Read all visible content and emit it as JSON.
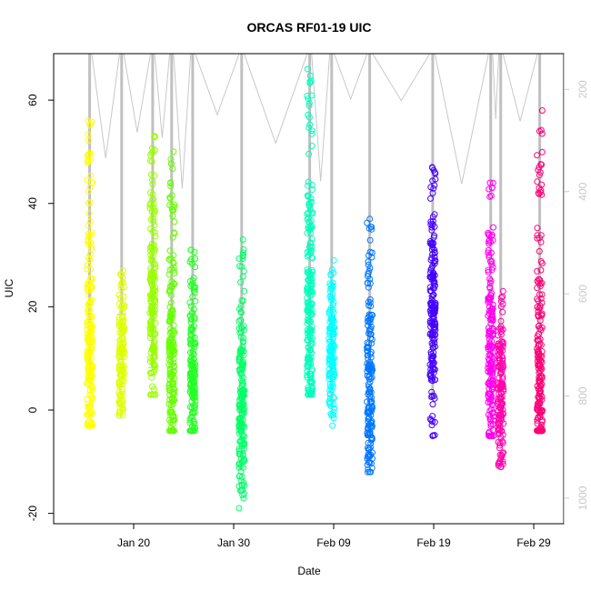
{
  "chart_data": {
    "type": "scatter",
    "title": "ORCAS RF01-19 UIC",
    "xlabel": "Date",
    "ylabel": "UIC",
    "xlim": [
      "2016-01-12",
      "2016-03-03"
    ],
    "ylim": [
      -22,
      69
    ],
    "y_ticks": [
      -20,
      0,
      20,
      40,
      60
    ],
    "x_ticks": [
      {
        "label": "Jan 20",
        "date": "2016-01-20"
      },
      {
        "label": "Jan 30",
        "date": "2016-01-30"
      },
      {
        "label": "Feb 09",
        "date": "2016-02-09"
      },
      {
        "label": "Feb 19",
        "date": "2016-02-19"
      },
      {
        "label": "Feb 29",
        "date": "2016-02-29"
      }
    ],
    "right_axis": {
      "ticks": [
        200,
        400,
        600,
        800,
        1000
      ],
      "reversed": true,
      "range_top": 130,
      "range_bottom": 1050,
      "color": "#c8c8c8"
    },
    "marker": "open-circle",
    "grid": false,
    "series": [
      {
        "date": "2016-01-15.6",
        "color": "#ffff00",
        "range": [
          -3,
          56
        ],
        "peak": 10
      },
      {
        "date": "2016-01-18.8",
        "color": "#ddff00",
        "range": [
          -1,
          27
        ],
        "peak": 10
      },
      {
        "date": "2016-01-21.9",
        "color": "#99ff00",
        "range": [
          3,
          53
        ],
        "peak": 20
      },
      {
        "date": "2016-01-23.8",
        "color": "#66ff00",
        "range": [
          -4,
          50
        ],
        "peak": 8
      },
      {
        "date": "2016-01-25.9",
        "color": "#22ff22",
        "range": [
          -4,
          31
        ],
        "peak": 8
      },
      {
        "date": "2016-01-30.8",
        "color": "#00ff66",
        "range": [
          -19,
          33
        ],
        "peak": 0
      },
      {
        "date": "2016-02-06.6",
        "color": "#00ffbb",
        "range": [
          3,
          66
        ],
        "peak": 18
      },
      {
        "date": "2016-02-08.8",
        "color": "#00ffff",
        "range": [
          -3,
          29
        ],
        "peak": 12
      },
      {
        "date": "2016-02-12.6",
        "color": "#0077ff",
        "range": [
          -12,
          37
        ],
        "peak": 5
      },
      {
        "date": "2016-02-18.9",
        "color": "#4400ff",
        "range": [
          -5,
          47
        ],
        "peak": 17
      },
      {
        "date": "2016-02-24.7",
        "color": "#ff00ee",
        "range": [
          -5,
          44
        ],
        "peak": 10
      },
      {
        "date": "2016-02-25.7",
        "color": "#ff00aa",
        "range": [
          -11,
          23
        ],
        "peak": 3
      },
      {
        "date": "2016-02-29.6",
        "color": "#ff0077",
        "range": [
          -4,
          58
        ],
        "peak": 2
      }
    ]
  }
}
